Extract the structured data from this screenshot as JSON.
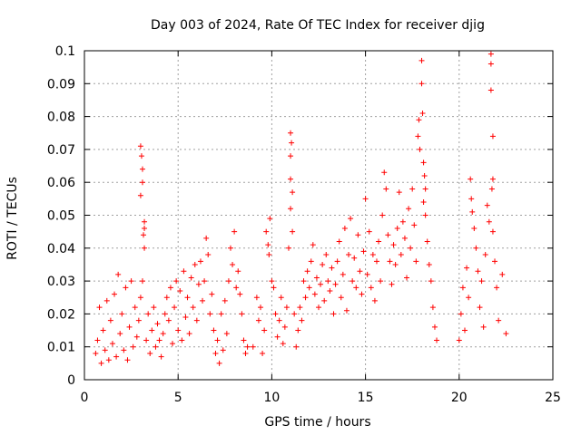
{
  "chart_data": {
    "type": "scatter",
    "title": "Day 003 of 2024, Rate Of TEC Index for receiver djig",
    "xlabel": "GPS time / hours",
    "ylabel": "ROTI / TECUs",
    "xlim": [
      0,
      25
    ],
    "ylim": [
      0,
      0.1
    ],
    "x_ticks": [
      "0",
      "5",
      "10",
      "15",
      "20",
      "25"
    ],
    "y_ticks": [
      "0",
      "0.01",
      "0.02",
      "0.03",
      "0.04",
      "0.05",
      "0.06",
      "0.07",
      "0.08",
      "0.09",
      "0.1"
    ],
    "x_tick_values": [
      0,
      5,
      10,
      15,
      20,
      25
    ],
    "y_tick_values": [
      0,
      0.01,
      0.02,
      0.03,
      0.04,
      0.05,
      0.06,
      0.07,
      0.08,
      0.09,
      0.1
    ],
    "grid": true,
    "marker": "+",
    "marker_color": "#ff0000",
    "series": [
      {
        "points": [
          [
            0.6,
            0.008
          ],
          [
            0.7,
            0.012
          ],
          [
            0.8,
            0.022
          ],
          [
            0.9,
            0.005
          ],
          [
            1.0,
            0.015
          ],
          [
            1.1,
            0.009
          ],
          [
            1.2,
            0.024
          ],
          [
            1.3,
            0.006
          ],
          [
            1.4,
            0.018
          ],
          [
            1.5,
            0.011
          ],
          [
            1.6,
            0.026
          ],
          [
            1.7,
            0.007
          ],
          [
            1.8,
            0.032
          ],
          [
            1.9,
            0.014
          ],
          [
            2.0,
            0.02
          ],
          [
            2.1,
            0.009
          ],
          [
            2.2,
            0.028
          ],
          [
            2.3,
            0.006
          ],
          [
            2.4,
            0.016
          ],
          [
            2.5,
            0.03
          ],
          [
            2.6,
            0.01
          ],
          [
            2.7,
            0.022
          ],
          [
            2.8,
            0.013
          ],
          [
            2.9,
            0.018
          ],
          [
            3.0,
            0.071
          ],
          [
            3.05,
            0.068
          ],
          [
            3.1,
            0.064
          ],
          [
            3.1,
            0.06
          ],
          [
            3.0,
            0.056
          ],
          [
            3.2,
            0.048
          ],
          [
            3.2,
            0.046
          ],
          [
            3.15,
            0.044
          ],
          [
            3.2,
            0.04
          ],
          [
            3.1,
            0.03
          ],
          [
            3.0,
            0.025
          ],
          [
            3.3,
            0.012
          ],
          [
            3.4,
            0.02
          ],
          [
            3.5,
            0.008
          ],
          [
            3.6,
            0.015
          ],
          [
            3.7,
            0.022
          ],
          [
            3.8,
            0.01
          ],
          [
            3.9,
            0.017
          ],
          [
            4.0,
            0.012
          ],
          [
            4.1,
            0.007
          ],
          [
            4.2,
            0.014
          ],
          [
            4.3,
            0.02
          ],
          [
            4.4,
            0.025
          ],
          [
            4.5,
            0.018
          ],
          [
            4.6,
            0.028
          ],
          [
            4.7,
            0.011
          ],
          [
            4.8,
            0.022
          ],
          [
            4.9,
            0.03
          ],
          [
            5.0,
            0.015
          ],
          [
            5.1,
            0.027
          ],
          [
            5.2,
            0.012
          ],
          [
            5.3,
            0.033
          ],
          [
            5.4,
            0.019
          ],
          [
            5.5,
            0.025
          ],
          [
            5.6,
            0.014
          ],
          [
            5.7,
            0.031
          ],
          [
            5.8,
            0.022
          ],
          [
            5.9,
            0.035
          ],
          [
            6.0,
            0.018
          ],
          [
            6.1,
            0.029
          ],
          [
            6.2,
            0.036
          ],
          [
            6.3,
            0.024
          ],
          [
            6.4,
            0.03
          ],
          [
            6.5,
            0.043
          ],
          [
            6.6,
            0.038
          ],
          [
            6.7,
            0.02
          ],
          [
            6.8,
            0.026
          ],
          [
            6.9,
            0.015
          ],
          [
            7.0,
            0.008
          ],
          [
            7.1,
            0.012
          ],
          [
            7.2,
            0.005
          ],
          [
            7.3,
            0.02
          ],
          [
            7.4,
            0.009
          ],
          [
            7.5,
            0.024
          ],
          [
            7.6,
            0.014
          ],
          [
            7.7,
            0.03
          ],
          [
            7.8,
            0.04
          ],
          [
            7.9,
            0.035
          ],
          [
            8.0,
            0.045
          ],
          [
            8.1,
            0.028
          ],
          [
            8.2,
            0.033
          ],
          [
            8.3,
            0.026
          ],
          [
            8.4,
            0.02
          ],
          [
            8.5,
            0.012
          ],
          [
            8.6,
            0.008
          ],
          [
            8.7,
            0.01
          ],
          [
            9.0,
            0.01
          ],
          [
            9.2,
            0.025
          ],
          [
            9.3,
            0.018
          ],
          [
            9.4,
            0.022
          ],
          [
            9.5,
            0.008
          ],
          [
            9.6,
            0.015
          ],
          [
            9.7,
            0.045
          ],
          [
            9.8,
            0.041
          ],
          [
            9.85,
            0.038
          ],
          [
            9.9,
            0.049
          ],
          [
            10.0,
            0.03
          ],
          [
            10.1,
            0.028
          ],
          [
            10.2,
            0.02
          ],
          [
            10.3,
            0.013
          ],
          [
            10.4,
            0.018
          ],
          [
            10.5,
            0.025
          ],
          [
            10.6,
            0.011
          ],
          [
            10.7,
            0.016
          ],
          [
            10.8,
            0.022
          ],
          [
            10.9,
            0.04
          ],
          [
            11.0,
            0.075
          ],
          [
            11.05,
            0.072
          ],
          [
            11.0,
            0.068
          ],
          [
            11.0,
            0.061
          ],
          [
            11.1,
            0.057
          ],
          [
            11.0,
            0.052
          ],
          [
            11.1,
            0.045
          ],
          [
            11.2,
            0.02
          ],
          [
            11.3,
            0.01
          ],
          [
            11.4,
            0.015
          ],
          [
            11.5,
            0.022
          ],
          [
            11.6,
            0.018
          ],
          [
            11.7,
            0.03
          ],
          [
            11.8,
            0.025
          ],
          [
            11.9,
            0.033
          ],
          [
            12.0,
            0.028
          ],
          [
            12.1,
            0.036
          ],
          [
            12.2,
            0.041
          ],
          [
            12.3,
            0.026
          ],
          [
            12.4,
            0.031
          ],
          [
            12.5,
            0.022
          ],
          [
            12.6,
            0.029
          ],
          [
            12.7,
            0.035
          ],
          [
            12.8,
            0.024
          ],
          [
            12.9,
            0.038
          ],
          [
            13.0,
            0.03
          ],
          [
            13.1,
            0.027
          ],
          [
            13.2,
            0.034
          ],
          [
            13.3,
            0.02
          ],
          [
            13.4,
            0.029
          ],
          [
            13.5,
            0.036
          ],
          [
            13.6,
            0.042
          ],
          [
            13.7,
            0.025
          ],
          [
            13.8,
            0.032
          ],
          [
            13.9,
            0.046
          ],
          [
            14.0,
            0.021
          ],
          [
            14.1,
            0.038
          ],
          [
            14.2,
            0.049
          ],
          [
            14.3,
            0.03
          ],
          [
            14.4,
            0.037
          ],
          [
            14.5,
            0.028
          ],
          [
            14.6,
            0.044
          ],
          [
            14.7,
            0.033
          ],
          [
            14.8,
            0.026
          ],
          [
            14.9,
            0.039
          ],
          [
            15.0,
            0.055
          ],
          [
            15.1,
            0.032
          ],
          [
            15.2,
            0.045
          ],
          [
            15.3,
            0.028
          ],
          [
            15.4,
            0.038
          ],
          [
            15.5,
            0.024
          ],
          [
            15.6,
            0.036
          ],
          [
            15.7,
            0.042
          ],
          [
            15.8,
            0.03
          ],
          [
            15.9,
            0.05
          ],
          [
            16.0,
            0.063
          ],
          [
            16.1,
            0.058
          ],
          [
            16.2,
            0.044
          ],
          [
            16.3,
            0.036
          ],
          [
            16.4,
            0.029
          ],
          [
            16.5,
            0.041
          ],
          [
            16.6,
            0.035
          ],
          [
            16.7,
            0.046
          ],
          [
            16.8,
            0.057
          ],
          [
            16.9,
            0.038
          ],
          [
            17.0,
            0.048
          ],
          [
            17.1,
            0.043
          ],
          [
            17.2,
            0.031
          ],
          [
            17.3,
            0.052
          ],
          [
            17.4,
            0.04
          ],
          [
            17.5,
            0.058
          ],
          [
            17.6,
            0.047
          ],
          [
            17.7,
            0.036
          ],
          [
            17.8,
            0.074
          ],
          [
            17.85,
            0.079
          ],
          [
            17.9,
            0.07
          ],
          [
            18.0,
            0.097
          ],
          [
            18.0,
            0.09
          ],
          [
            18.05,
            0.081
          ],
          [
            18.1,
            0.066
          ],
          [
            18.15,
            0.062
          ],
          [
            18.2,
            0.058
          ],
          [
            18.1,
            0.054
          ],
          [
            18.2,
            0.05
          ],
          [
            18.3,
            0.042
          ],
          [
            18.4,
            0.035
          ],
          [
            18.5,
            0.03
          ],
          [
            18.6,
            0.022
          ],
          [
            18.7,
            0.016
          ],
          [
            18.8,
            0.012
          ],
          [
            20.0,
            0.012
          ],
          [
            20.1,
            0.02
          ],
          [
            20.2,
            0.028
          ],
          [
            20.3,
            0.015
          ],
          [
            20.4,
            0.034
          ],
          [
            20.5,
            0.025
          ],
          [
            20.6,
            0.061
          ],
          [
            20.65,
            0.055
          ],
          [
            20.7,
            0.051
          ],
          [
            20.8,
            0.046
          ],
          [
            20.9,
            0.04
          ],
          [
            21.0,
            0.033
          ],
          [
            21.1,
            0.022
          ],
          [
            21.2,
            0.03
          ],
          [
            21.3,
            0.016
          ],
          [
            21.4,
            0.038
          ],
          [
            21.5,
            0.053
          ],
          [
            21.6,
            0.048
          ],
          [
            21.7,
            0.099
          ],
          [
            21.7,
            0.096
          ],
          [
            21.7,
            0.088
          ],
          [
            21.8,
            0.074
          ],
          [
            21.8,
            0.061
          ],
          [
            21.75,
            0.058
          ],
          [
            21.8,
            0.045
          ],
          [
            21.9,
            0.036
          ],
          [
            22.0,
            0.028
          ],
          [
            22.1,
            0.018
          ],
          [
            22.3,
            0.032
          ],
          [
            22.5,
            0.014
          ]
        ]
      }
    ]
  }
}
